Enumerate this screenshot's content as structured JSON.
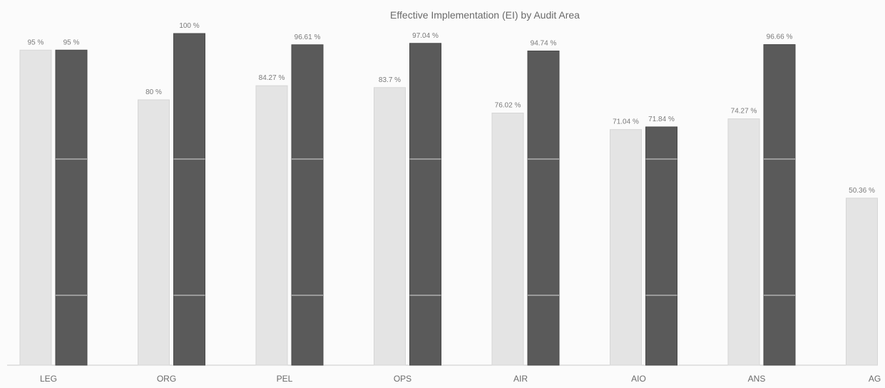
{
  "chart_data": {
    "type": "bar",
    "title": "Effective Implementation (EI) by Audit Area",
    "categories": [
      "LEG",
      "ORG",
      "PEL",
      "OPS",
      "AIR",
      "AIO",
      "ANS",
      "AG"
    ],
    "series": [
      {
        "values": [
          95,
          80,
          84.27,
          83.7,
          76.02,
          71.04,
          74.27,
          50.36
        ],
        "labels": [
          "95 %",
          "80 %",
          "84.27 %",
          "83.7 %",
          "76.02 %",
          "71.04 %",
          "74.27 %",
          "50.36 %"
        ],
        "color": "#e4e4e4"
      },
      {
        "values": [
          95,
          100,
          96.61,
          97.04,
          94.74,
          71.84,
          96.66,
          null
        ],
        "labels": [
          "95 %",
          "100 %",
          "96.61 %",
          "97.04 %",
          "94.74 %",
          "71.84 %",
          "96.66 %",
          null
        ],
        "color": "#5a5a5a"
      }
    ],
    "ylim": [
      0,
      100
    ],
    "grid": false,
    "legend": "none"
  }
}
